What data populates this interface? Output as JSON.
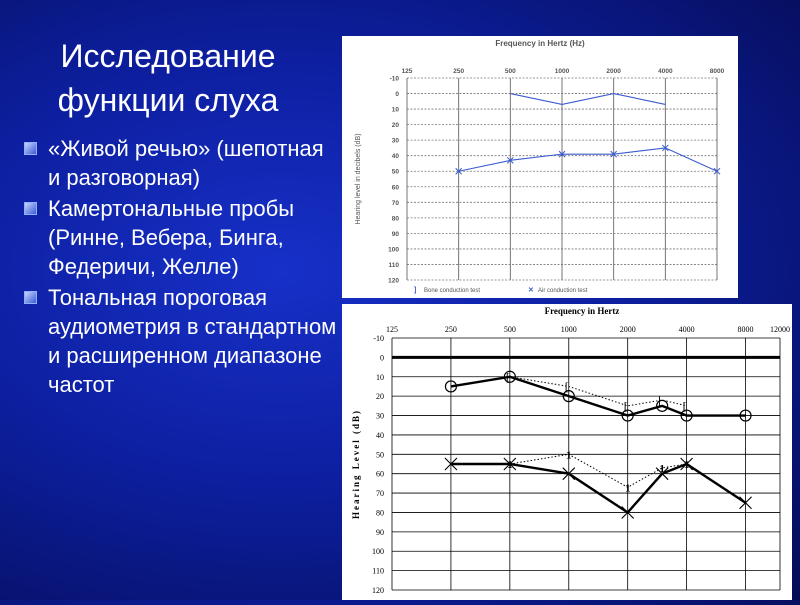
{
  "slide": {
    "title_line1": "Исследование",
    "title_line2": "функции слуха",
    "bullets": [
      "«Живой речью» (шепотная и разговорная)",
      "Камертональные пробы (Ринне, Вебера, Бинга, Федеричи, Желле)",
      "Тональная пороговая аудиометрия в стандартном и расширенном диапазоне частот"
    ]
  },
  "chart_data": [
    {
      "type": "line",
      "title": "Frequency in Hertz (Hz)",
      "xlabel": "",
      "ylabel": "Hearing level in decibels (dB)",
      "x_categories": [
        "125",
        "250",
        "500",
        "1000",
        "2000",
        "4000",
        "8000"
      ],
      "y_ticks": [
        "-10",
        "0",
        "10",
        "20",
        "30",
        "40",
        "50",
        "60",
        "70",
        "80",
        "90",
        "100",
        "110",
        "120"
      ],
      "ylim": [
        -10,
        120
      ],
      "y_inverted": true,
      "legend": [
        "Bone conduction test",
        "Air conduction test"
      ],
      "legend_position": "bottom",
      "colors": {
        "bone": "#3a5bd0",
        "air": "#3a5bd0",
        "grid": "#777777"
      },
      "series": [
        {
          "name": "Bone conduction test",
          "marker": "bracket",
          "points": [
            [
              "500",
              0
            ],
            [
              "1000",
              7
            ],
            [
              "2000",
              0
            ],
            [
              "4000",
              7
            ]
          ]
        },
        {
          "name": "Air conduction test",
          "marker": "x",
          "points": [
            [
              "250",
              50
            ],
            [
              "500",
              43
            ],
            [
              "1000",
              39
            ],
            [
              "2000",
              39
            ],
            [
              "4000",
              35
            ],
            [
              "8000",
              50
            ]
          ]
        }
      ]
    },
    {
      "type": "line",
      "title": "Frequency in Hertz",
      "xlabel": "",
      "ylabel": "Hearing Level (dB)",
      "x_ticks": [
        "125",
        "250",
        "500",
        "1000",
        "2000",
        "4000",
        "8000",
        "12000"
      ],
      "y_ticks": [
        "-10",
        "0",
        "10",
        "20",
        "30",
        "40",
        "50",
        "60",
        "70",
        "80",
        "90",
        "100",
        "110",
        "120"
      ],
      "ylim": [
        -10,
        120
      ],
      "y_inverted": true,
      "grid": true,
      "colors": {
        "lines": "#000000"
      },
      "series": [
        {
          "marker": "o",
          "style": "solid",
          "points": [
            [
              250,
              15
            ],
            [
              500,
              10
            ],
            [
              1000,
              20
            ],
            [
              2000,
              30
            ],
            [
              3000,
              25
            ],
            [
              4000,
              30
            ],
            [
              8000,
              30
            ]
          ]
        },
        {
          "marker": "[",
          "style": "dotted",
          "points": [
            [
              500,
              10
            ],
            [
              1000,
              15
            ],
            [
              2000,
              25
            ],
            [
              3000,
              22
            ],
            [
              4000,
              25
            ]
          ]
        },
        {
          "marker": "x",
          "style": "solid",
          "points": [
            [
              250,
              55
            ],
            [
              500,
              55
            ],
            [
              1000,
              60
            ],
            [
              2000,
              80
            ],
            [
              3000,
              60
            ],
            [
              4000,
              55
            ],
            [
              8000,
              75
            ]
          ]
        },
        {
          "marker": "1",
          "style": "dotted",
          "points": [
            [
              500,
              55
            ],
            [
              1000,
              50
            ],
            [
              2000,
              67
            ],
            [
              3000,
              57
            ],
            [
              4000,
              55
            ]
          ]
        }
      ],
      "marker_labels": {
        "bone_bracket": "[",
        "bone_mask": "1"
      }
    }
  ]
}
